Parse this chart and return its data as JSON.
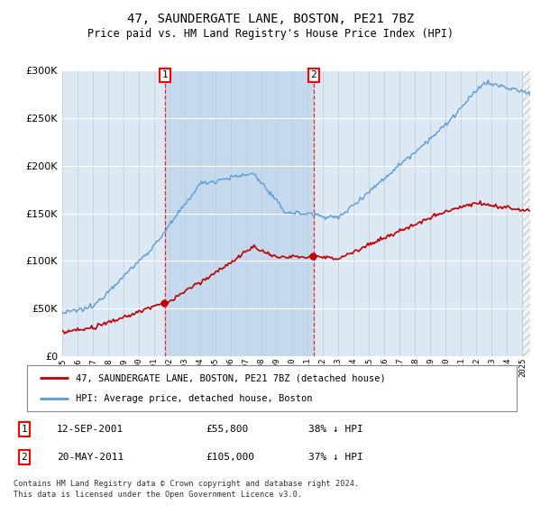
{
  "title": "47, SAUNDERGATE LANE, BOSTON, PE21 7BZ",
  "subtitle": "Price paid vs. HM Land Registry's House Price Index (HPI)",
  "hpi_color": "#5b9bd5",
  "price_color": "#c00000",
  "bg_color": "#dce9f5",
  "bg_shade_color": "#c5d9ee",
  "sale1_date": "12-SEP-2001",
  "sale1_price": 55800,
  "sale1_year": 2001.71,
  "sale1_label": "38% ↓ HPI",
  "sale2_date": "20-MAY-2011",
  "sale2_price": 105000,
  "sale2_year": 2011.38,
  "sale2_label": "37% ↓ HPI",
  "legend_line1": "47, SAUNDERGATE LANE, BOSTON, PE21 7BZ (detached house)",
  "legend_line2": "HPI: Average price, detached house, Boston",
  "footnote1": "Contains HM Land Registry data © Crown copyright and database right 2024.",
  "footnote2": "This data is licensed under the Open Government Licence v3.0.",
  "ylim": [
    0,
    300000
  ],
  "yticks": [
    0,
    50000,
    100000,
    150000,
    200000,
    250000,
    300000
  ],
  "xmin": 1995,
  "xmax": 2025.5
}
